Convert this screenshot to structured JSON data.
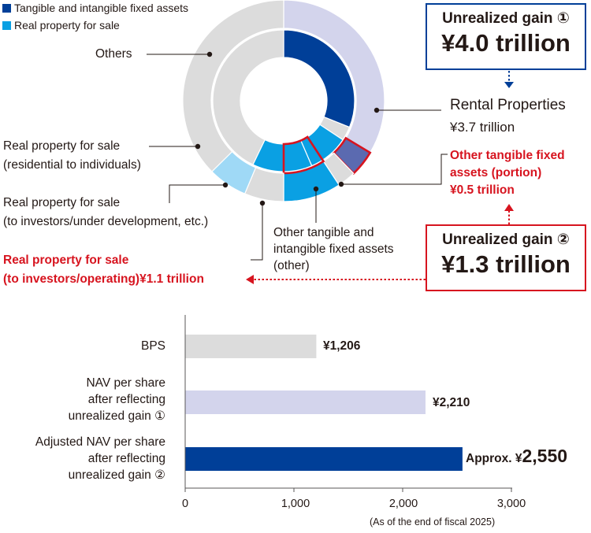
{
  "legend": [
    {
      "label": "Tangible and intangible fixed assets",
      "color": "#003f98"
    },
    {
      "label": "Real property for sale",
      "color": "#0aa0e3"
    }
  ],
  "donut_labels": {
    "others": "Others",
    "rental_title": "Rental Properties",
    "rental_value": "¥3.7 trillion",
    "other_tangible_l1": "Other tangible fixed",
    "other_tangible_l2": "assets (portion)",
    "other_tangible_value": "¥0.5 trillion",
    "rps_resid_l1": "Real property for sale",
    "rps_resid_l2": "(residential to individuals)",
    "rps_inv_l1": "Real property for sale",
    "rps_inv_l2": "(to investors/under development, etc.)",
    "other_tia_l1": "Other tangible and",
    "other_tia_l2": "intangible fixed assets",
    "other_tia_l3": "(other)",
    "rps_oper_l1": "Real property for sale",
    "rps_oper_l2": "(to investors/operating)¥1.1 trillion"
  },
  "gain_boxes": {
    "gain1_title": "Unrealized gain ①",
    "gain1_value": "¥4.0 trillion",
    "gain2_title": "Unrealized gain ②",
    "gain2_value": "¥1.3 trillion"
  },
  "colors": {
    "dark_blue": "#003f98",
    "light_blue": "#0aa0e3",
    "pale_blue": "#9fd9f6",
    "lavender": "#d3d4ec",
    "slate": "#5b6ab0",
    "grey": "#dcdcdc",
    "red": "#d7141f"
  },
  "chart_data": [
    {
      "type": "pie",
      "rings": [
        {
          "ring": "inner",
          "slices": [
            {
              "name": "Rental Properties",
              "value": 3.7,
              "color": "#003f98"
            },
            {
              "name": "Other tangible and intangible fixed assets (other)",
              "value": 0.38,
              "color": "#dcdcdc"
            },
            {
              "name": "Real property for sale (to investors/operating)",
              "value": 1.1,
              "color": "#0aa0e3"
            },
            {
              "name": "Real property for sale (to investors/under development, etc.)",
              "value": 1.62,
              "color": "#0aa0e3"
            },
            {
              "name": "Others",
              "value": 5.1,
              "color": "#dcdcdc"
            }
          ]
        },
        {
          "ring": "outer",
          "slices": [
            {
              "name": "Unrealized gain ①",
              "value": 4.0,
              "color": "#d3d4ec"
            },
            {
              "name": "Other tangible fixed assets (portion)",
              "value": 0.5,
              "color": "#5b6ab0"
            },
            {
              "name": "Other tangible and intangible fixed assets (other)",
              "value": 0.35,
              "color": "#dcdcdc"
            },
            {
              "name": "Real property for sale (to investors/operating)",
              "value": 1.1,
              "color": "#0aa0e3"
            },
            {
              "name": "Real property for sale (to investors/under development, etc.)",
              "value": 0.75,
              "color": "#dcdcdc"
            },
            {
              "name": "Real property for sale (residential to individuals)",
              "value": 0.75,
              "color": "#9fd9f6"
            },
            {
              "name": "Others",
              "value": 4.45,
              "color": "#dcdcdc"
            }
          ]
        }
      ]
    },
    {
      "type": "bar",
      "orientation": "horizontal",
      "categories": [
        [
          "BPS"
        ],
        [
          "NAV per share",
          "after reflecting",
          "unrealized gain ①"
        ],
        [
          "Adjusted NAV per share",
          "after reflecting",
          "unrealized gain ②"
        ]
      ],
      "values": [
        1206,
        2210,
        2550
      ],
      "value_labels": [
        "¥1,206",
        "¥2,210",
        "2,550"
      ],
      "value_prefix_small": [
        "",
        "",
        "Approx. ¥"
      ],
      "bar_colors": [
        "#dcdcdc",
        "#d3d4ec",
        "#003f98"
      ],
      "xlim": [
        0,
        3000
      ],
      "xticks": [
        0,
        1000,
        2000,
        3000
      ],
      "xtick_labels": [
        "0",
        "1,000",
        "2,000",
        "3,000"
      ],
      "note": "(As of the end of fiscal 2025)"
    }
  ]
}
